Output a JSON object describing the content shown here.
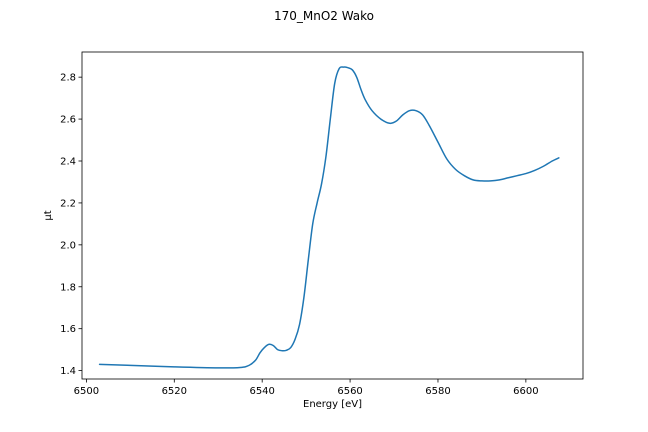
{
  "chart_data": {
    "type": "line",
    "title": "170_MnO2 Wako",
    "xlabel": "Energy [eV]",
    "ylabel": "μt",
    "xlim": [
      6499,
      6613
    ],
    "ylim": [
      1.36,
      2.92
    ],
    "xticks": [
      6500,
      6520,
      6540,
      6560,
      6580,
      6600
    ],
    "yticks": [
      1.4,
      1.6,
      1.8,
      2.0,
      2.2,
      2.4,
      2.6,
      2.8
    ],
    "grid": false,
    "line_color": "#1f77b4",
    "series": [
      {
        "x": [
          6503,
          6510,
          6520,
          6530,
          6535,
          6537,
          6538.5,
          6539.5,
          6540.5,
          6541.5,
          6542.5,
          6543.5,
          6544.5,
          6545.5,
          6546.5,
          6547.5,
          6548.5,
          6549.5,
          6550.5,
          6551.5,
          6552.5,
          6553.5,
          6554.5,
          6555.5,
          6556.5,
          6557.5,
          6558.5,
          6559.5,
          6560.5,
          6561.5,
          6562.5,
          6563.5,
          6565,
          6567,
          6569,
          6570.5,
          6572,
          6573.5,
          6575,
          6576.5,
          6578,
          6580,
          6582,
          6584,
          6586,
          6588,
          6590,
          6592,
          6594,
          6596,
          6598,
          6600,
          6602,
          6604,
          6606,
          6607.5
        ],
        "y": [
          1.43,
          1.425,
          1.418,
          1.413,
          1.415,
          1.425,
          1.45,
          1.485,
          1.51,
          1.525,
          1.52,
          1.5,
          1.495,
          1.497,
          1.51,
          1.55,
          1.62,
          1.75,
          1.93,
          2.1,
          2.2,
          2.29,
          2.42,
          2.6,
          2.77,
          2.84,
          2.848,
          2.845,
          2.835,
          2.8,
          2.74,
          2.69,
          2.64,
          2.6,
          2.58,
          2.59,
          2.62,
          2.64,
          2.64,
          2.62,
          2.57,
          2.49,
          2.41,
          2.36,
          2.33,
          2.31,
          2.305,
          2.305,
          2.31,
          2.32,
          2.33,
          2.34,
          2.355,
          2.375,
          2.4,
          2.415
        ]
      }
    ]
  }
}
